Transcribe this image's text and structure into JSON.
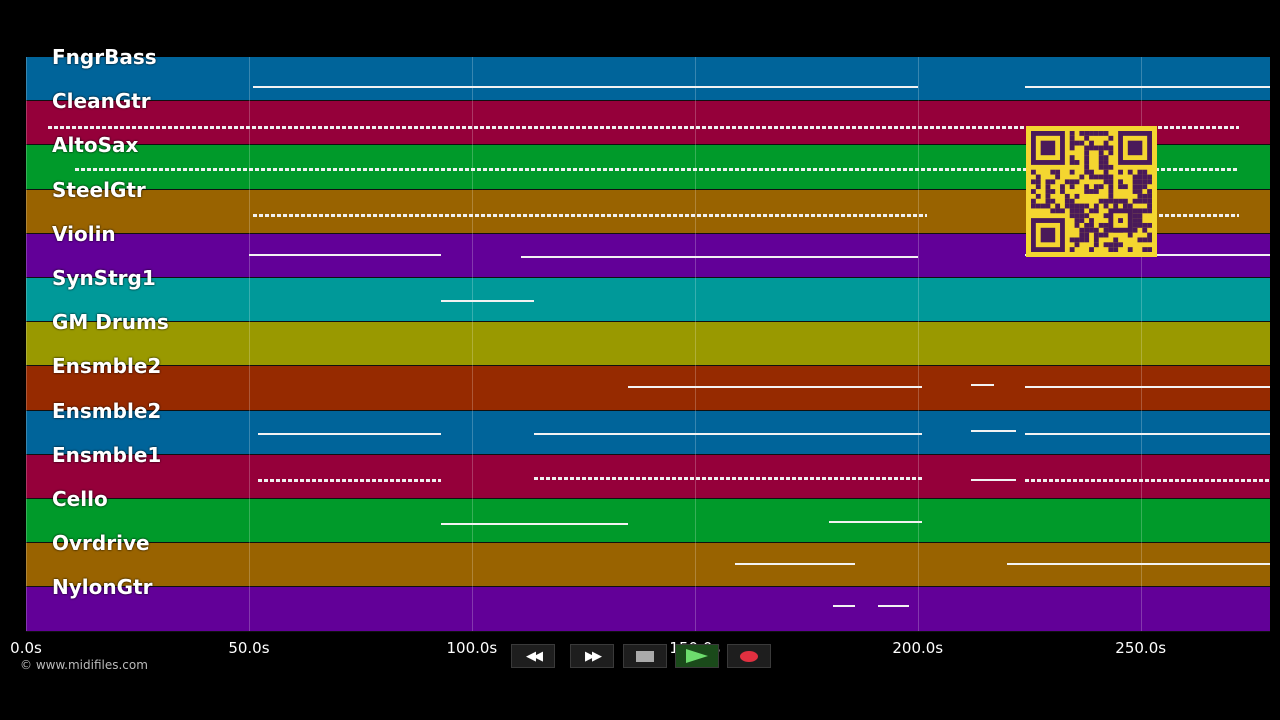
{
  "piano_roll": {
    "time_range": [
      0,
      279
    ],
    "tracks": [
      {
        "name": "FngrBass",
        "color": "#00649a"
      },
      {
        "name": "CleanGtr",
        "color": "#95003a"
      },
      {
        "name": "AltoSax",
        "color": "#009a2a"
      },
      {
        "name": "SteelGtr",
        "color": "#996300"
      },
      {
        "name": "Violin",
        "color": "#620098"
      },
      {
        "name": "SynStrg1",
        "color": "#009999"
      },
      {
        "name": "GM Drums",
        "color": "#999900"
      },
      {
        "name": "Ensmble2",
        "color": "#962a00"
      },
      {
        "name": "Ensmble2",
        "color": "#00649a"
      },
      {
        "name": "Ensmble1",
        "color": "#95003a"
      },
      {
        "name": "Cello",
        "color": "#009a2a"
      },
      {
        "name": "Ovrdrive",
        "color": "#996300"
      },
      {
        "name": "NylonGtr",
        "color": "#620098"
      }
    ],
    "time_ticks": [
      {
        "t": 0,
        "label": "0.0s"
      },
      {
        "t": 50,
        "label": "50.0s"
      },
      {
        "t": 100,
        "label": "100.0s"
      },
      {
        "t": 150,
        "label": "150.0s"
      },
      {
        "t": 200,
        "label": "200.0s"
      },
      {
        "t": 250,
        "label": "250.0s"
      }
    ]
  },
  "footer": {
    "copyright": "© www.midifiles.com"
  },
  "controls": {
    "rewind_icon": "rewind-icon",
    "forward_icon": "fast-forward-icon",
    "stop_icon": "stop-icon",
    "play_icon": "play-icon",
    "record_icon": "record-icon",
    "play_color": "#6ddc6d",
    "record_color": "#e03040"
  }
}
